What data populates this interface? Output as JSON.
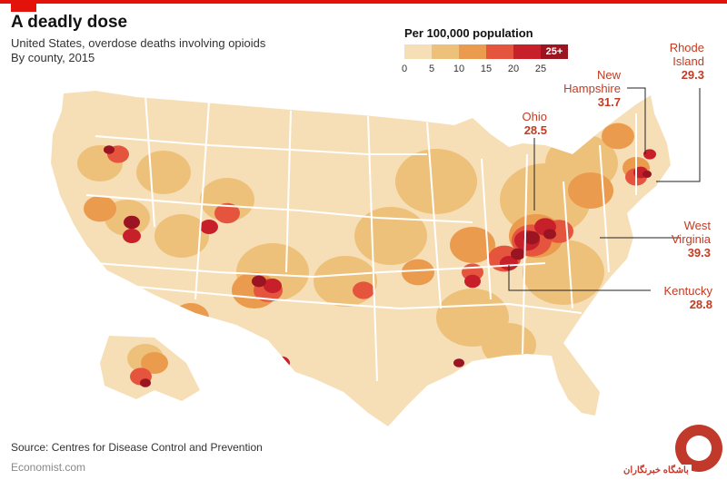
{
  "title": "A deadly dose",
  "subtitle_line1": "United States, overdose deaths involving opioids",
  "subtitle_line2": "By county, 2015",
  "source": "Source: Centres for Disease Control and Prevention",
  "credit": "Economist.com",
  "watermark": "باشگاه خبرنگاران",
  "chart_data": {
    "type": "choropleth",
    "legend_title": "Per 100,000 population",
    "bins": [
      {
        "from": 0,
        "to": 5,
        "color": "#f6dfb7"
      },
      {
        "from": 5,
        "to": 10,
        "color": "#eec17b"
      },
      {
        "from": 10,
        "to": 15,
        "color": "#eb9b4d"
      },
      {
        "from": 15,
        "to": 20,
        "color": "#e5553d"
      },
      {
        "from": 20,
        "to": 25,
        "color": "#c8202a"
      },
      {
        "from": 25,
        "to": null,
        "label": "25+",
        "color": "#9b1422"
      }
    ],
    "tick_labels": [
      "0",
      "5",
      "10",
      "15",
      "20",
      "25"
    ],
    "highlighted_states": [
      {
        "name": "Rhode Island",
        "name_lines": [
          "Rhode",
          "Island"
        ],
        "value": 29.3
      },
      {
        "name": "New Hampshire",
        "name_lines": [
          "New",
          "Hampshire"
        ],
        "value": 31.7
      },
      {
        "name": "Ohio",
        "name_lines": [
          "Ohio"
        ],
        "value": 28.5
      },
      {
        "name": "West Virginia",
        "name_lines": [
          "West",
          "Virginia"
        ],
        "value": 39.3
      },
      {
        "name": "Kentucky",
        "name_lines": [
          "Kentucky"
        ],
        "value": 28.8
      }
    ]
  }
}
